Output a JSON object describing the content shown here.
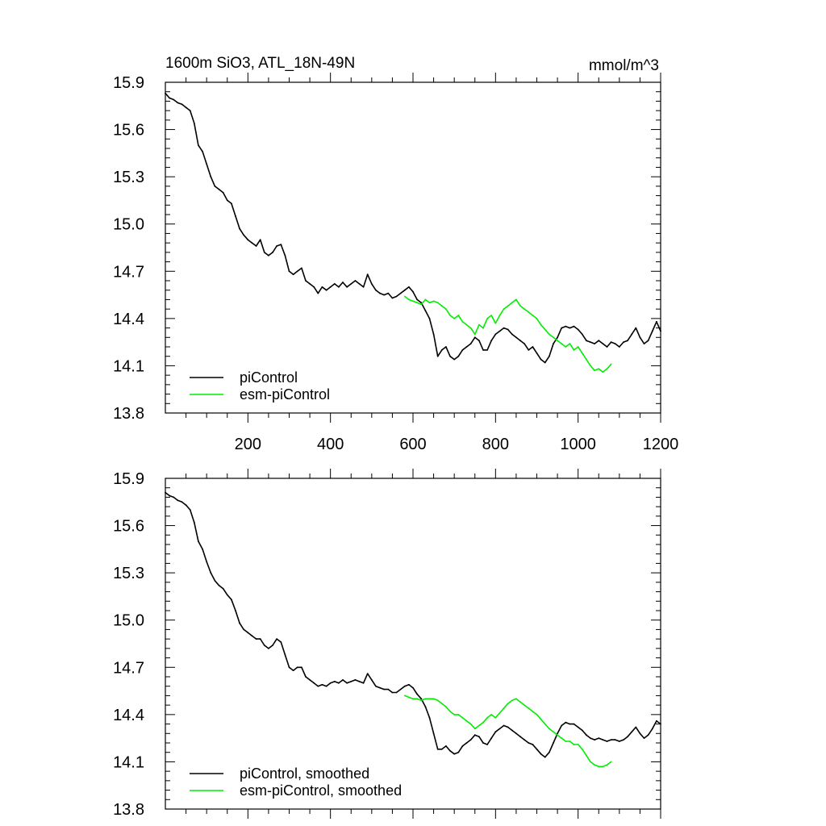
{
  "chart_data": [
    {
      "type": "line",
      "panel": "top",
      "title": "1600m SiO3, ATL_18N-49N",
      "units": "mmol/m^3",
      "xlim": [
        0,
        1200
      ],
      "ylim": [
        13.8,
        15.9
      ],
      "xticks": [
        200,
        400,
        600,
        800,
        1000,
        1200
      ],
      "xtick_labels": [
        "200",
        "400",
        "600",
        "800",
        "1000",
        "1200"
      ],
      "yticks": [
        15.9,
        15.6,
        15.3,
        15.0,
        14.7,
        14.4,
        14.1,
        13.8
      ],
      "ytick_labels": [
        "15.9",
        "15.6",
        "15.3",
        "15.0",
        "14.7",
        "14.4",
        "14.1",
        "13.8"
      ],
      "legend_position": "bottom-left",
      "series": [
        {
          "name": "piControl",
          "color": "#000000",
          "x": [
            0,
            10,
            20,
            30,
            40,
            50,
            60,
            70,
            80,
            90,
            100,
            110,
            120,
            130,
            140,
            150,
            160,
            170,
            180,
            190,
            200,
            210,
            220,
            230,
            240,
            250,
            260,
            270,
            280,
            290,
            300,
            310,
            320,
            330,
            340,
            350,
            360,
            370,
            380,
            390,
            400,
            410,
            420,
            430,
            440,
            450,
            460,
            470,
            480,
            490,
            500,
            510,
            520,
            530,
            540,
            550,
            560,
            570,
            580,
            590,
            600,
            610,
            620,
            630,
            640,
            650,
            660,
            670,
            680,
            690,
            700,
            710,
            720,
            730,
            740,
            750,
            760,
            770,
            780,
            790,
            800,
            810,
            820,
            830,
            840,
            850,
            860,
            870,
            880,
            890,
            900,
            910,
            920,
            930,
            940,
            950,
            960,
            970,
            980,
            990,
            1000,
            1010,
            1020,
            1030,
            1040,
            1050,
            1060,
            1070,
            1080,
            1090,
            1100,
            1110,
            1120,
            1130,
            1140,
            1150,
            1160,
            1170,
            1180,
            1190,
            1200
          ],
          "values": [
            15.83,
            15.8,
            15.79,
            15.77,
            15.76,
            15.74,
            15.72,
            15.64,
            15.5,
            15.46,
            15.38,
            15.3,
            15.24,
            15.22,
            15.2,
            15.15,
            15.13,
            15.05,
            14.97,
            14.93,
            14.9,
            14.88,
            14.86,
            14.9,
            14.82,
            14.8,
            14.82,
            14.86,
            14.87,
            14.8,
            14.7,
            14.68,
            14.7,
            14.72,
            14.64,
            14.62,
            14.6,
            14.56,
            14.6,
            14.58,
            14.6,
            14.62,
            14.6,
            14.63,
            14.6,
            14.62,
            14.64,
            14.62,
            14.6,
            14.68,
            14.62,
            14.58,
            14.56,
            14.55,
            14.56,
            14.53,
            14.54,
            14.56,
            14.58,
            14.6,
            14.57,
            14.52,
            14.5,
            14.45,
            14.4,
            14.3,
            14.16,
            14.2,
            14.22,
            14.16,
            14.14,
            14.16,
            14.2,
            14.22,
            14.24,
            14.28,
            14.26,
            14.2,
            14.2,
            14.26,
            14.3,
            14.32,
            14.34,
            14.33,
            14.3,
            14.28,
            14.26,
            14.24,
            14.2,
            14.22,
            14.18,
            14.14,
            14.12,
            14.16,
            14.24,
            14.28,
            14.34,
            14.35,
            14.34,
            14.35,
            14.33,
            14.3,
            14.26,
            14.25,
            14.24,
            14.26,
            14.24,
            14.22,
            14.25,
            14.24,
            14.22,
            14.25,
            14.26,
            14.3,
            14.34,
            14.28,
            14.24,
            14.26,
            14.32,
            14.38,
            14.32
          ]
        },
        {
          "name": "esm-piControl",
          "color": "#00ee00",
          "x": [
            580,
            590,
            600,
            610,
            620,
            630,
            640,
            650,
            660,
            670,
            680,
            690,
            700,
            710,
            720,
            730,
            740,
            750,
            760,
            770,
            780,
            790,
            800,
            810,
            820,
            830,
            840,
            850,
            860,
            870,
            880,
            890,
            900,
            910,
            920,
            930,
            940,
            950,
            960,
            970,
            980,
            990,
            1000,
            1010,
            1020,
            1030,
            1040,
            1050,
            1060,
            1070,
            1080
          ],
          "values": [
            14.54,
            14.52,
            14.51,
            14.5,
            14.49,
            14.52,
            14.5,
            14.51,
            14.5,
            14.48,
            14.46,
            14.42,
            14.4,
            14.42,
            14.38,
            14.36,
            14.34,
            14.3,
            14.36,
            14.34,
            14.4,
            14.42,
            14.37,
            14.42,
            14.46,
            14.48,
            14.5,
            14.52,
            14.48,
            14.46,
            14.44,
            14.42,
            14.4,
            14.36,
            14.33,
            14.3,
            14.28,
            14.26,
            14.24,
            14.22,
            14.24,
            14.2,
            14.22,
            14.18,
            14.14,
            14.1,
            14.07,
            14.08,
            14.06,
            14.08,
            14.11
          ]
        }
      ]
    },
    {
      "type": "line",
      "panel": "bottom",
      "xlim": [
        0,
        1200
      ],
      "ylim": [
        13.8,
        15.9
      ],
      "yticks": [
        15.9,
        15.6,
        15.3,
        15.0,
        14.7,
        14.4,
        14.1,
        13.8
      ],
      "ytick_labels": [
        "15.9",
        "15.6",
        "15.3",
        "15.0",
        "14.7",
        "14.4",
        "14.1",
        "13.8"
      ],
      "legend_position": "bottom-left",
      "series": [
        {
          "name": "piControl, smoothed",
          "color": "#000000",
          "x": [
            0,
            10,
            20,
            30,
            40,
            50,
            60,
            70,
            80,
            90,
            100,
            110,
            120,
            130,
            140,
            150,
            160,
            170,
            180,
            190,
            200,
            210,
            220,
            230,
            240,
            250,
            260,
            270,
            280,
            290,
            300,
            310,
            320,
            330,
            340,
            350,
            360,
            370,
            380,
            390,
            400,
            410,
            420,
            430,
            440,
            450,
            460,
            470,
            480,
            490,
            500,
            510,
            520,
            530,
            540,
            550,
            560,
            570,
            580,
            590,
            600,
            610,
            620,
            630,
            640,
            650,
            660,
            670,
            680,
            690,
            700,
            710,
            720,
            730,
            740,
            750,
            760,
            770,
            780,
            790,
            800,
            810,
            820,
            830,
            840,
            850,
            860,
            870,
            880,
            890,
            900,
            910,
            920,
            930,
            940,
            950,
            960,
            970,
            980,
            990,
            1000,
            1010,
            1020,
            1030,
            1040,
            1050,
            1060,
            1070,
            1080,
            1090,
            1100,
            1110,
            1120,
            1130,
            1140,
            1150,
            1160,
            1170,
            1180,
            1190,
            1200
          ],
          "values": [
            15.81,
            15.79,
            15.78,
            15.76,
            15.75,
            15.73,
            15.7,
            15.62,
            15.5,
            15.45,
            15.37,
            15.3,
            15.25,
            15.22,
            15.2,
            15.16,
            15.13,
            15.06,
            14.98,
            14.94,
            14.92,
            14.9,
            14.88,
            14.88,
            14.84,
            14.82,
            14.84,
            14.88,
            14.86,
            14.78,
            14.7,
            14.68,
            14.7,
            14.7,
            14.64,
            14.62,
            14.6,
            14.58,
            14.59,
            14.58,
            14.6,
            14.61,
            14.6,
            14.62,
            14.6,
            14.61,
            14.62,
            14.61,
            14.6,
            14.66,
            14.62,
            14.58,
            14.57,
            14.56,
            14.56,
            14.54,
            14.54,
            14.56,
            14.58,
            14.59,
            14.57,
            14.53,
            14.5,
            14.45,
            14.38,
            14.28,
            14.18,
            14.18,
            14.2,
            14.17,
            14.15,
            14.16,
            14.2,
            14.22,
            14.24,
            14.27,
            14.26,
            14.22,
            14.21,
            14.25,
            14.29,
            14.31,
            14.33,
            14.32,
            14.3,
            14.28,
            14.26,
            14.24,
            14.22,
            14.21,
            14.18,
            14.15,
            14.13,
            14.16,
            14.22,
            14.28,
            14.33,
            14.35,
            14.34,
            14.34,
            14.32,
            14.3,
            14.27,
            14.25,
            14.24,
            14.25,
            14.24,
            14.23,
            14.24,
            14.24,
            14.23,
            14.24,
            14.26,
            14.29,
            14.32,
            14.28,
            14.25,
            14.27,
            14.31,
            14.36,
            14.34
          ]
        },
        {
          "name": "esm-piControl, smoothed",
          "color": "#00ee00",
          "x": [
            580,
            590,
            600,
            610,
            620,
            630,
            640,
            650,
            660,
            670,
            680,
            690,
            700,
            710,
            720,
            730,
            740,
            750,
            760,
            770,
            780,
            790,
            800,
            810,
            820,
            830,
            840,
            850,
            860,
            870,
            880,
            890,
            900,
            910,
            920,
            930,
            940,
            950,
            960,
            970,
            980,
            990,
            1000,
            1010,
            1020,
            1030,
            1040,
            1050,
            1060,
            1070,
            1080
          ],
          "values": [
            14.52,
            14.51,
            14.5,
            14.5,
            14.49,
            14.5,
            14.5,
            14.5,
            14.49,
            14.47,
            14.45,
            14.42,
            14.4,
            14.4,
            14.38,
            14.36,
            14.34,
            14.31,
            14.33,
            14.35,
            14.38,
            14.4,
            14.38,
            14.41,
            14.44,
            14.47,
            14.49,
            14.5,
            14.48,
            14.46,
            14.44,
            14.42,
            14.4,
            14.37,
            14.34,
            14.31,
            14.29,
            14.27,
            14.25,
            14.23,
            14.23,
            14.21,
            14.21,
            14.18,
            14.14,
            14.1,
            14.08,
            14.07,
            14.07,
            14.08,
            14.1
          ]
        }
      ]
    }
  ]
}
